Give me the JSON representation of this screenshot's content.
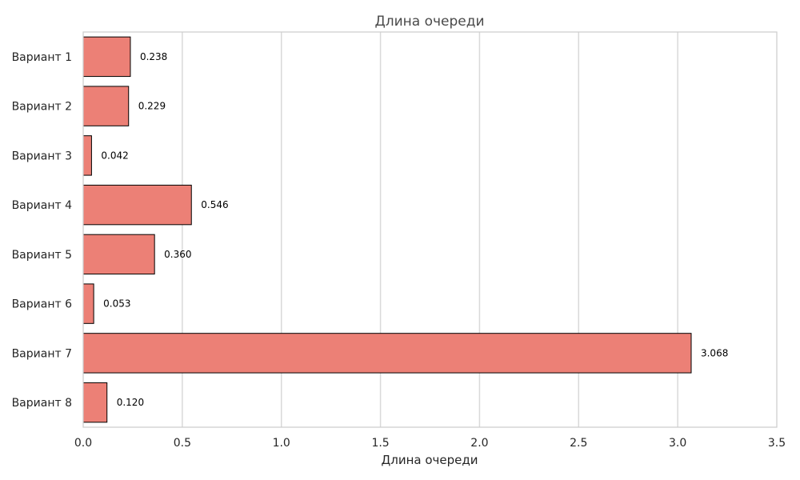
{
  "chart_data": {
    "type": "bar",
    "orientation": "horizontal",
    "title": "Длина очереди",
    "xlabel": "Длина очереди",
    "ylabel": "",
    "categories": [
      "Вариант 1",
      "Вариант 2",
      "Вариант 3",
      "Вариант 4",
      "Вариант 5",
      "Вариант 6",
      "Вариант 7",
      "Вариант 8"
    ],
    "values": [
      0.238,
      0.229,
      0.042,
      0.546,
      0.36,
      0.053,
      3.068,
      0.12
    ],
    "value_labels": [
      "0.238",
      "0.229",
      "0.042",
      "0.546",
      "0.360",
      "0.053",
      "3.068",
      "0.120"
    ],
    "xlim": [
      0,
      3.5
    ],
    "xticks": [
      0.0,
      0.5,
      1.0,
      1.5,
      2.0,
      2.5,
      3.0,
      3.5
    ],
    "xtick_labels": [
      "0.0",
      "0.5",
      "1.0",
      "1.5",
      "2.0",
      "2.5",
      "3.0",
      "3.5"
    ],
    "grid": "vertical",
    "colors": {
      "bar_fill": "#ec8076",
      "bar_edge": "#000000",
      "grid": "#d9d9d9",
      "frame": "#cccccc"
    }
  }
}
